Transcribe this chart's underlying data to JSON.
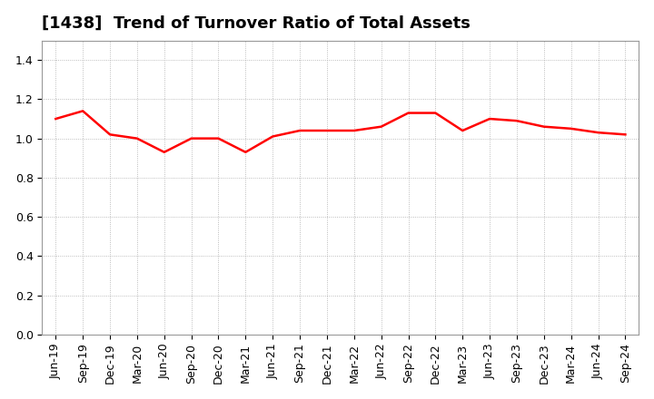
{
  "title": "[1438]  Trend of Turnover Ratio of Total Assets",
  "x_labels": [
    "Jun-19",
    "Sep-19",
    "Dec-19",
    "Mar-20",
    "Jun-20",
    "Sep-20",
    "Dec-20",
    "Mar-21",
    "Jun-21",
    "Sep-21",
    "Dec-21",
    "Mar-22",
    "Jun-22",
    "Sep-22",
    "Dec-22",
    "Mar-23",
    "Jun-23",
    "Sep-23",
    "Dec-23",
    "Mar-24",
    "Jun-24",
    "Sep-24"
  ],
  "y_values": [
    1.1,
    1.14,
    1.02,
    1.0,
    0.93,
    1.0,
    1.0,
    0.93,
    1.01,
    1.04,
    1.04,
    1.04,
    1.06,
    1.13,
    1.13,
    1.04,
    1.1,
    1.09,
    1.06,
    1.05,
    1.03,
    1.02
  ],
  "line_color": "#ff0000",
  "line_width": 1.8,
  "ylim": [
    0.0,
    1.5
  ],
  "yticks": [
    0.0,
    0.2,
    0.4,
    0.6,
    0.8,
    1.0,
    1.2,
    1.4
  ],
  "background_color": "#ffffff",
  "plot_bg_color": "#ffffff",
  "grid_color": "#aaaaaa",
  "title_fontsize": 13,
  "tick_fontsize": 9
}
